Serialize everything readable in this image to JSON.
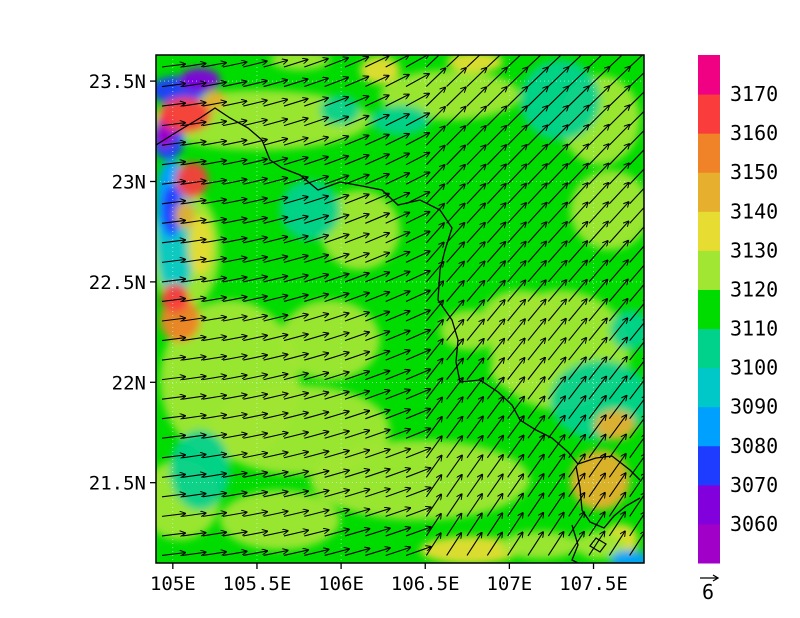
{
  "map": {
    "lat_ticks": [
      {
        "label": "23.5N",
        "value": 23.5
      },
      {
        "label": "23N",
        "value": 23.0
      },
      {
        "label": "22.5N",
        "value": 22.5
      },
      {
        "label": "22N",
        "value": 22.0
      },
      {
        "label": "21.5N",
        "value": 21.5
      }
    ],
    "lon_ticks": [
      {
        "label": "105E",
        "value": 105.0
      },
      {
        "label": "105.5E",
        "value": 105.5
      },
      {
        "label": "106E",
        "value": 106.0
      },
      {
        "label": "106.5E",
        "value": 106.5
      },
      {
        "label": "107E",
        "value": 107.0
      },
      {
        "label": "107.5E",
        "value": 107.5
      }
    ],
    "lon_range": [
      104.9,
      107.8
    ],
    "lat_range": [
      21.1,
      23.63
    ],
    "field": "geopotential height shaded with wind vectors",
    "wind_reference_label": "6",
    "colors": {
      "background_field": "#00cc00"
    }
  },
  "colorbar": {
    "levels": [
      "3060",
      "3070",
      "3080",
      "3090",
      "3100",
      "3110",
      "3120",
      "3130",
      "3140",
      "3150",
      "3160",
      "3170"
    ],
    "colors": [
      "#a000c8",
      "#8200dc",
      "#1e3cff",
      "#00a0ff",
      "#00c8c8",
      "#00d28c",
      "#00dc00",
      "#a0e632",
      "#e6dc32",
      "#e6af2d",
      "#f08228",
      "#fa3c3c",
      "#f00082"
    ]
  }
}
